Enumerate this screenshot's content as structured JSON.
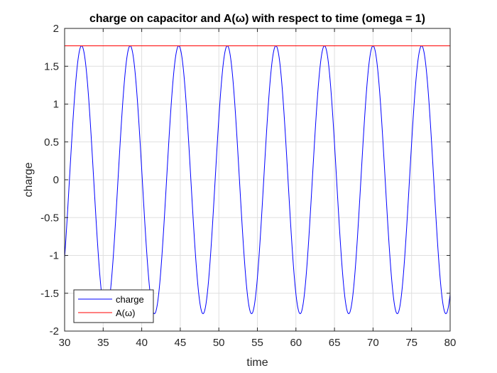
{
  "chart_data": {
    "type": "line",
    "title": "charge on capacitor and A(ω) with respect to time (omega = 1)",
    "xlabel": "time",
    "ylabel": "charge",
    "xlim": [
      30,
      80
    ],
    "ylim": [
      -2,
      2
    ],
    "xticks": [
      30,
      35,
      40,
      45,
      50,
      55,
      60,
      65,
      70,
      75,
      80
    ],
    "yticks": [
      -2,
      -1.5,
      -1,
      -0.5,
      0,
      0.5,
      1,
      1.5,
      2
    ],
    "xtick_labels": [
      "30",
      "35",
      "40",
      "45",
      "50",
      "55",
      "60",
      "65",
      "70",
      "75",
      "80"
    ],
    "ytick_labels": [
      "-2",
      "-1.5",
      "-1",
      "-0.5",
      "0",
      "0.5",
      "1",
      "1.5",
      "2"
    ],
    "grid": true,
    "legend_position": "bottom-left",
    "series": [
      {
        "name": "charge",
        "color": "#0000ff",
        "kind": "sinusoid",
        "amplitude": 1.77,
        "period": 6.3,
        "first_peak_at": 32.2,
        "x_start": 30,
        "x_end": 80,
        "peaks_x": [
          32.2,
          38.5,
          44.8,
          51.1,
          57.4,
          63.7,
          70.0,
          76.3
        ],
        "peaks_y": [
          1.77,
          1.77,
          1.77,
          1.77,
          1.77,
          1.77,
          1.77,
          1.77
        ],
        "troughs_x": [
          35.35,
          41.65,
          47.95,
          54.25,
          60.55,
          66.85,
          73.15,
          79.45
        ],
        "troughs_y": [
          -1.77,
          -1.77,
          -1.77,
          -1.77,
          -1.77,
          -1.77,
          -1.77,
          -1.77
        ],
        "y_at_x_start": -0.94,
        "y_at_x_end": -1.38
      },
      {
        "name": "A(ω)",
        "color": "#ff0000",
        "kind": "constant",
        "x": [
          30,
          80
        ],
        "y": [
          1.77,
          1.77
        ]
      }
    ]
  }
}
